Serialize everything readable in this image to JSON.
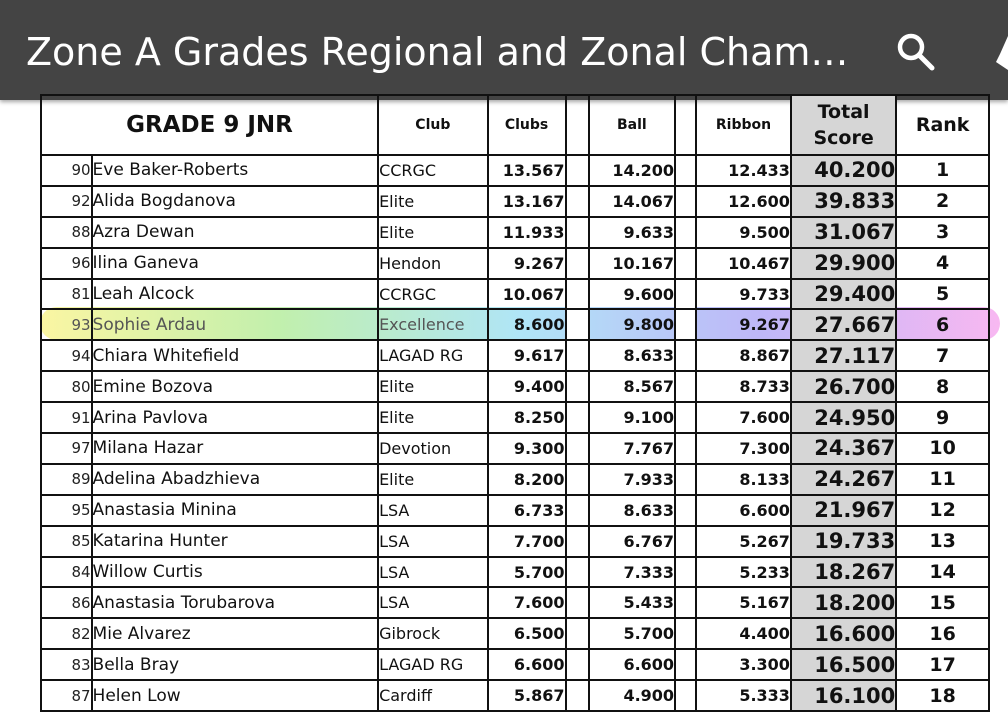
{
  "app_bar": {
    "title": "Zone A Grades Regional and Zonal Cham…",
    "search_icon": "search-icon",
    "more_icon": "more-icon",
    "background": "#444444"
  },
  "table": {
    "heading": "GRADE 9 JNR",
    "columns": {
      "club": "Club",
      "clubs": "Clubs",
      "ball": "Ball",
      "ribbon": "Ribbon",
      "total_line1": "Total",
      "total_line2": "Score",
      "rank": "Rank"
    },
    "rows": [
      {
        "num": "90",
        "name": "Eve Baker-Roberts",
        "club": "CCRGC",
        "clubs": "13.567",
        "ball": "14.200",
        "ribbon": "12.433",
        "total": "40.200",
        "rank": "1"
      },
      {
        "num": "92",
        "name": "Alida Bogdanova",
        "club": "Elite",
        "clubs": "13.167",
        "ball": "14.067",
        "ribbon": "12.600",
        "total": "39.833",
        "rank": "2"
      },
      {
        "num": "88",
        "name": "Azra Dewan",
        "club": "Elite",
        "clubs": "11.933",
        "ball": "9.633",
        "ribbon": "9.500",
        "total": "31.067",
        "rank": "3"
      },
      {
        "num": "96",
        "name": "Ilina Ganeva",
        "club": "Hendon",
        "clubs": "9.267",
        "ball": "10.167",
        "ribbon": "10.467",
        "total": "29.900",
        "rank": "4"
      },
      {
        "num": "81",
        "name": "Leah Alcock",
        "club": "CCRGC",
        "clubs": "10.067",
        "ball": "9.600",
        "ribbon": "9.733",
        "total": "29.400",
        "rank": "5"
      },
      {
        "num": "93",
        "name": "Sophie Ardau",
        "club": "Excellence",
        "clubs": "8.600",
        "ball": "9.800",
        "ribbon": "9.267",
        "total": "27.667",
        "rank": "6"
      },
      {
        "num": "94",
        "name": "Chiara Whitefield",
        "club": "LAGAD RG",
        "clubs": "9.617",
        "ball": "8.633",
        "ribbon": "8.867",
        "total": "27.117",
        "rank": "7"
      },
      {
        "num": "80",
        "name": "Emine Bozova",
        "club": "Elite",
        "clubs": "9.400",
        "ball": "8.567",
        "ribbon": "8.733",
        "total": "26.700",
        "rank": "8"
      },
      {
        "num": "91",
        "name": "Arina Pavlova",
        "club": "Elite",
        "clubs": "8.250",
        "ball": "9.100",
        "ribbon": "7.600",
        "total": "24.950",
        "rank": "9"
      },
      {
        "num": "97",
        "name": "Milana Hazar",
        "club": "Devotion",
        "clubs": "9.300",
        "ball": "7.767",
        "ribbon": "7.300",
        "total": "24.367",
        "rank": "10"
      },
      {
        "num": "89",
        "name": "Adelina Abadzhieva",
        "club": "Elite",
        "clubs": "8.200",
        "ball": "7.933",
        "ribbon": "8.133",
        "total": "24.267",
        "rank": "11"
      },
      {
        "num": "95",
        "name": "Anastasia Minina",
        "club": "LSA",
        "clubs": "6.733",
        "ball": "8.633",
        "ribbon": "6.600",
        "total": "21.967",
        "rank": "12"
      },
      {
        "num": "85",
        "name": "Katarina Hunter",
        "club": "LSA",
        "clubs": "7.700",
        "ball": "6.767",
        "ribbon": "5.267",
        "total": "19.733",
        "rank": "13"
      },
      {
        "num": "84",
        "name": "Willow Curtis",
        "club": "LSA",
        "clubs": "5.700",
        "ball": "7.333",
        "ribbon": "5.233",
        "total": "18.267",
        "rank": "14"
      },
      {
        "num": "86",
        "name": "Anastasia Torubarova",
        "club": "LSA",
        "clubs": "7.600",
        "ball": "5.433",
        "ribbon": "5.167",
        "total": "18.200",
        "rank": "15"
      },
      {
        "num": "82",
        "name": "Mie Alvarez",
        "club": "Gibrock",
        "clubs": "6.500",
        "ball": "5.700",
        "ribbon": "4.400",
        "total": "16.600",
        "rank": "16"
      },
      {
        "num": "83",
        "name": "Bella Bray",
        "club": "LAGAD RG",
        "clubs": "6.600",
        "ball": "6.600",
        "ribbon": "3.300",
        "total": "16.500",
        "rank": "17"
      },
      {
        "num": "87",
        "name": "Helen Low",
        "club": "Cardiff",
        "clubs": "5.867",
        "ball": "4.900",
        "ribbon": "5.333",
        "total": "16.100",
        "rank": "18"
      }
    ],
    "highlighted_rank": "6",
    "highlight_colors": [
      "#f7ee57",
      "#8fe36a",
      "#6fd0f0",
      "#8a7cf2",
      "#f27de6"
    ],
    "total_column_shade": "#d6d6d6"
  }
}
